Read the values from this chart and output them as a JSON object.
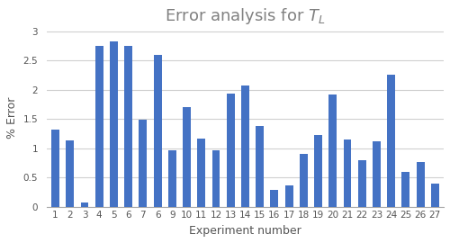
{
  "categories": [
    "1",
    "2",
    "3",
    "4",
    "5",
    "6",
    "7",
    "6",
    "9",
    "10",
    "11",
    "12",
    "13",
    "14",
    "15",
    "16",
    "17",
    "18",
    "19",
    "20",
    "21",
    "22",
    "23",
    "24",
    "25",
    "26",
    "27"
  ],
  "values": [
    1.32,
    1.13,
    0.07,
    2.75,
    2.82,
    2.75,
    1.48,
    2.6,
    0.97,
    1.7,
    1.17,
    0.97,
    1.93,
    2.07,
    1.38,
    0.29,
    0.37,
    0.9,
    1.22,
    1.92,
    1.15,
    0.8,
    1.12,
    2.25,
    0.6,
    0.76,
    0.4
  ],
  "bar_color": "#4472C4",
  "title_color": "#808080",
  "xlabel": "Experiment number",
  "ylabel": "% Error",
  "ylim": [
    0,
    3.05
  ],
  "yticks": [
    0,
    0.5,
    1.0,
    1.5,
    2.0,
    2.5,
    3.0
  ],
  "background_color": "#ffffff",
  "grid_color": "#d0d0d0",
  "title_fontsize": 13,
  "label_fontsize": 9,
  "tick_fontsize": 7.5
}
